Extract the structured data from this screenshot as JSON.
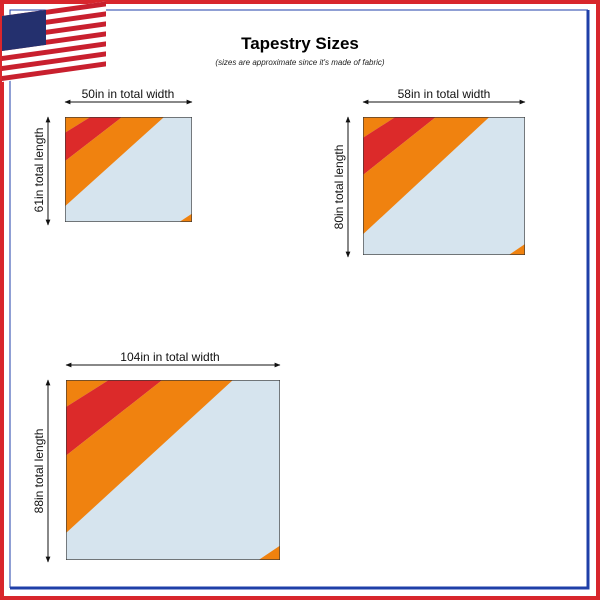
{
  "header": {
    "title": "Tapestry Sizes",
    "subtitle": "(sizes are approximate since it's made of fabric)"
  },
  "tapestries": [
    {
      "width_label": "50in in total width",
      "length_label": "61in total length"
    },
    {
      "width_label": "58in in total width",
      "length_label": "80in total length"
    },
    {
      "width_label": "104in in total width",
      "length_label": "88in total length"
    }
  ]
}
